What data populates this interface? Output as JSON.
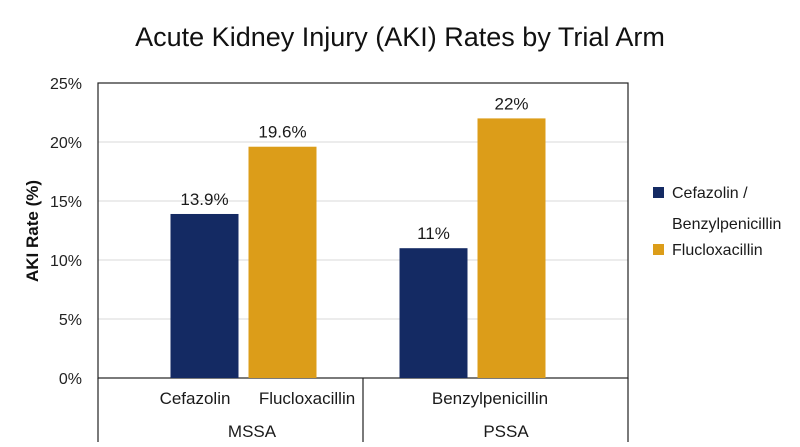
{
  "chart_data": {
    "type": "bar",
    "title": "Acute Kidney Injury (AKI) Rates by Trial Arm",
    "ylabel": "AKI Rate (%)",
    "xlabel": "",
    "ylim": [
      0,
      25
    ],
    "yticks": [
      "0%",
      "5%",
      "10%",
      "15%",
      "20%",
      "25%"
    ],
    "grid": true,
    "legend_position": "right",
    "groups": [
      "MSSA",
      "PSSA"
    ],
    "series": [
      {
        "name": "Cefazolin / Benzylpenicillin",
        "legend_lines": [
          "Cefazolin /",
          "Benzylpenicillin"
        ],
        "color": "#142a63",
        "values": [
          13.9,
          11
        ],
        "labels": [
          "13.9%",
          "11%"
        ]
      },
      {
        "name": "Flucloxacillin",
        "legend_lines": [
          "Flucloxacillin"
        ],
        "color": "#dc9d19",
        "values": [
          19.6,
          22
        ],
        "labels": [
          "19.6%",
          "22%"
        ]
      }
    ],
    "category_labels": [
      [
        "Cefazolin",
        "Flucloxacillin"
      ],
      [
        "Benzylpenicillin",
        ""
      ]
    ]
  }
}
